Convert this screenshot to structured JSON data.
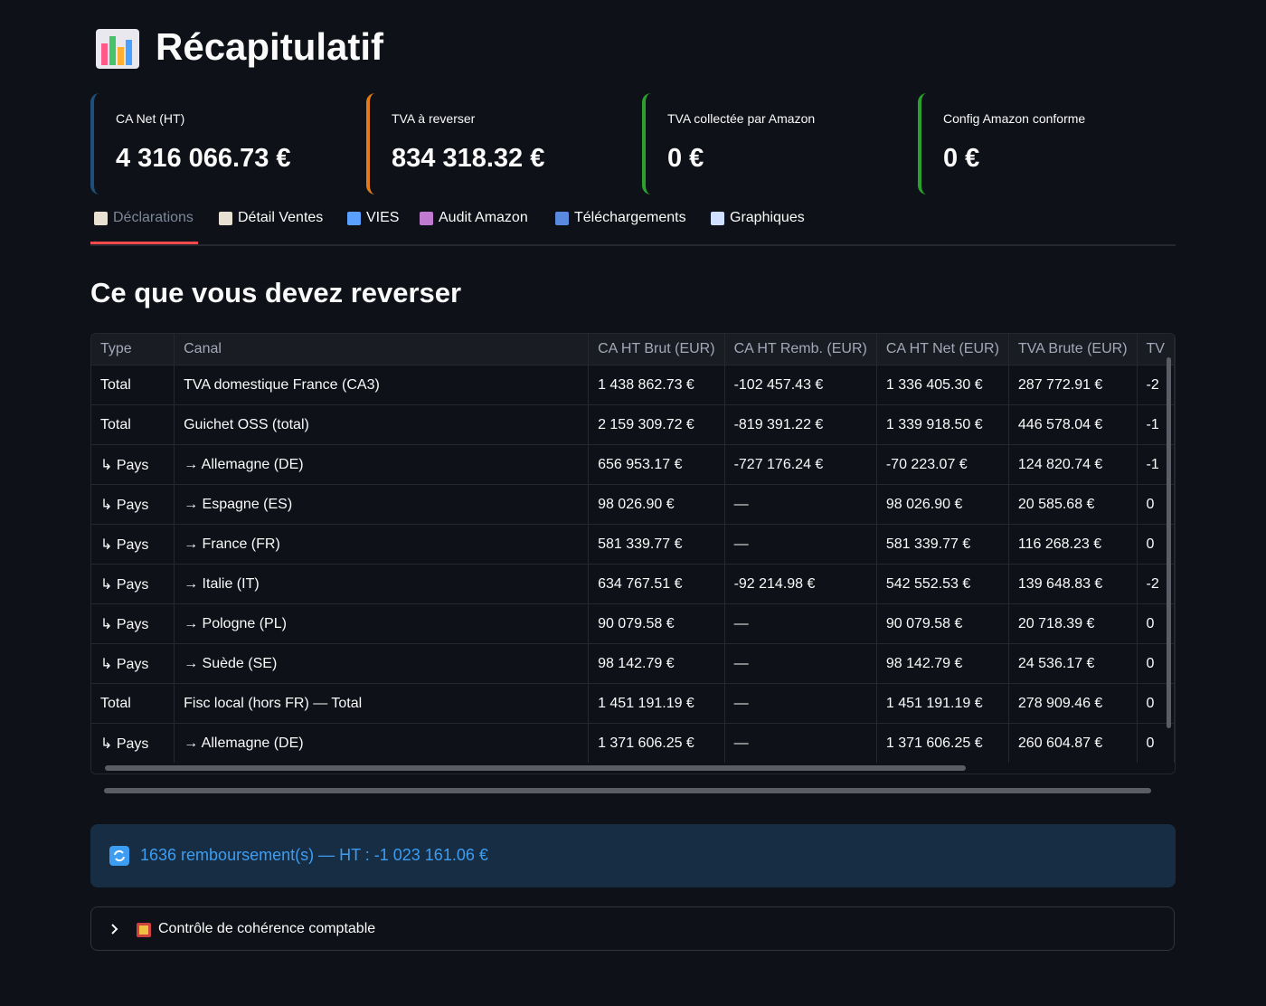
{
  "header": {
    "title": "Récapitulatif"
  },
  "metrics": [
    {
      "label": "CA Net (HT)",
      "value": "4 316 066.73 €",
      "color": "#1f4e79"
    },
    {
      "label": "TVA à reverser",
      "value": "834 318.32 €",
      "color": "#e07b1a"
    },
    {
      "label": "TVA collectée par Amazon",
      "value": "0 €",
      "color": "#2ca02c"
    },
    {
      "label": "Config Amazon conforme",
      "value": "0 €",
      "color": "#2ca02c"
    }
  ],
  "tabs": [
    "Déclarations",
    "Détail Ventes",
    "VIES",
    "Audit Amazon",
    "Téléchargements",
    "Graphiques"
  ],
  "section_title": "Ce que vous devez reverser",
  "table": {
    "columns": [
      "Type",
      "Canal",
      "CA HT Brut (EUR)",
      "CA HT Remb. (EUR)",
      "CA HT Net (EUR)",
      "TVA Brute (EUR)",
      "TV"
    ],
    "rows": [
      [
        "Total",
        "TVA domestique France (CA3)",
        "1 438 862.73 €",
        "-102 457.43 €",
        "1 336 405.30 €",
        "287 772.91 €",
        "-2"
      ],
      [
        "Total",
        "Guichet OSS (total)",
        "2 159 309.72 €",
        "-819 391.22 €",
        "1 339 918.50 €",
        "446 578.04 €",
        "-1"
      ],
      [
        "↳ Pays",
        "→ Allemagne (DE)",
        "656 953.17 €",
        "-727 176.24 €",
        "-70 223.07 €",
        "124 820.74 €",
        "-1"
      ],
      [
        "↳ Pays",
        "→ Espagne (ES)",
        "98 026.90 €",
        "—",
        "98 026.90 €",
        "20 585.68 €",
        "0"
      ],
      [
        "↳ Pays",
        "→ France (FR)",
        "581 339.77 €",
        "—",
        "581 339.77 €",
        "116 268.23 €",
        "0"
      ],
      [
        "↳ Pays",
        "→ Italie (IT)",
        "634 767.51 €",
        "-92 214.98 €",
        "542 552.53 €",
        "139 648.83 €",
        "-2"
      ],
      [
        "↳ Pays",
        "→ Pologne (PL)",
        "90 079.58 €",
        "—",
        "90 079.58 €",
        "20 718.39 €",
        "0"
      ],
      [
        "↳ Pays",
        "→ Suède (SE)",
        "98 142.79 €",
        "—",
        "98 142.79 €",
        "24 536.17 €",
        "0"
      ],
      [
        "Total",
        "Fisc local (hors FR) — Total",
        "1 451 191.19 €",
        "—",
        "1 451 191.19 €",
        "278 909.46 €",
        "0"
      ],
      [
        "↳ Pays",
        "→ Allemagne (DE)",
        "1 371 606.25 €",
        "—",
        "1 371 606.25 €",
        "260 604.87 €",
        "0"
      ]
    ]
  },
  "info": "1636 remboursement(s) — HT : -1 023 161.06 €",
  "expander": "Contrôle de cohérence comptable"
}
